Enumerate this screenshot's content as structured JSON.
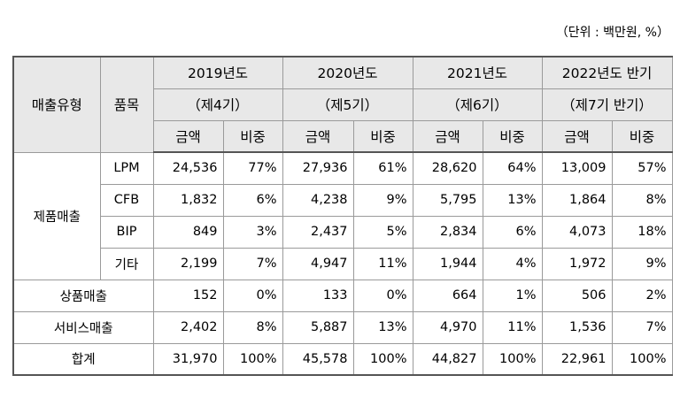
{
  "unit_note": "（단위 : 백만원, %）",
  "header": {
    "type_label": "매출유형",
    "item_label": "품목",
    "periods": [
      {
        "year": "2019년도",
        "term": "（제4기）"
      },
      {
        "year": "2020년도",
        "term": "（제5기）"
      },
      {
        "year": "2021년도",
        "term": "（제6기）"
      },
      {
        "year": "2022년도 반기",
        "term": "（제7기 반기）"
      }
    ],
    "amount_label": "금액",
    "ratio_label": "비중"
  },
  "product_sales": {
    "label": "제품매출",
    "rows": [
      {
        "item": "LPM",
        "values": [
          "24,536",
          "77%",
          "27,936",
          "61%",
          "28,620",
          "64%",
          "13,009",
          "57%"
        ]
      },
      {
        "item": "CFB",
        "values": [
          "1,832",
          "6%",
          "4,238",
          "9%",
          "5,795",
          "13%",
          "1,864",
          "8%"
        ]
      },
      {
        "item": "BIP",
        "values": [
          "849",
          "3%",
          "2,437",
          "5%",
          "2,834",
          "6%",
          "4,073",
          "18%"
        ]
      },
      {
        "item": "기타",
        "values": [
          "2,199",
          "7%",
          "4,947",
          "11%",
          "1,944",
          "4%",
          "1,972",
          "9%"
        ]
      }
    ]
  },
  "merch_sales": {
    "label": "상품매출",
    "values": [
      "152",
      "0%",
      "133",
      "0%",
      "664",
      "1%",
      "506",
      "2%"
    ]
  },
  "service_sales": {
    "label": "서비스매출",
    "values": [
      "2,402",
      "8%",
      "5,887",
      "13%",
      "4,970",
      "11%",
      "1,536",
      "7%"
    ]
  },
  "total": {
    "label": "합계",
    "values": [
      "31,970",
      "100%",
      "45,578",
      "100%",
      "44,827",
      "100%",
      "22,961",
      "100%"
    ]
  }
}
